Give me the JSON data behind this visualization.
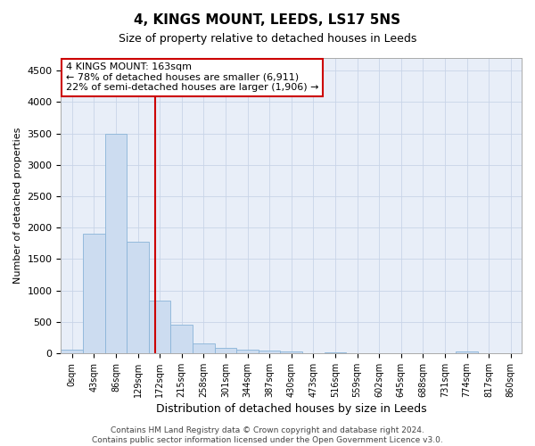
{
  "title": "4, KINGS MOUNT, LEEDS, LS17 5NS",
  "subtitle": "Size of property relative to detached houses in Leeds",
  "xlabel": "Distribution of detached houses by size in Leeds",
  "ylabel": "Number of detached properties",
  "bin_labels": [
    "0sqm",
    "43sqm",
    "86sqm",
    "129sqm",
    "172sqm",
    "215sqm",
    "258sqm",
    "301sqm",
    "344sqm",
    "387sqm",
    "430sqm",
    "473sqm",
    "516sqm",
    "559sqm",
    "602sqm",
    "645sqm",
    "688sqm",
    "731sqm",
    "774sqm",
    "817sqm",
    "860sqm"
  ],
  "bar_values": [
    60,
    1900,
    3500,
    1780,
    840,
    460,
    160,
    90,
    50,
    35,
    25,
    0,
    10,
    0,
    0,
    0,
    0,
    0,
    30,
    0,
    0
  ],
  "bar_color": "#ccdcf0",
  "bar_edge_color": "#8ab4d8",
  "vline_color": "#cc0000",
  "annotation_text": "4 KINGS MOUNT: 163sqm\n← 78% of detached houses are smaller (6,911)\n22% of semi-detached houses are larger (1,906) →",
  "annotation_box_color": "#ffffff",
  "annotation_box_edge": "#cc0000",
  "ylim": [
    0,
    4700
  ],
  "yticks": [
    0,
    500,
    1000,
    1500,
    2000,
    2500,
    3000,
    3500,
    4000,
    4500
  ],
  "footnote": "Contains HM Land Registry data © Crown copyright and database right 2024.\nContains public sector information licensed under the Open Government Licence v3.0.",
  "grid_color": "#c8d4e8",
  "background_color": "#e8eef8",
  "title_fontsize": 11,
  "subtitle_fontsize": 9
}
